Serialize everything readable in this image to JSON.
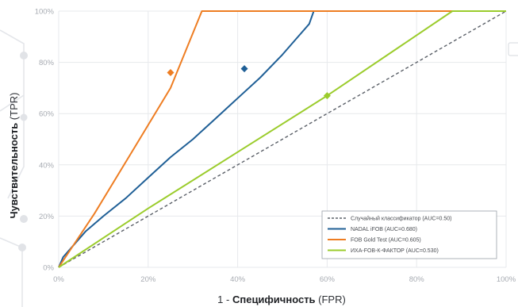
{
  "chart_data": {
    "type": "line",
    "xlabel": {
      "prefix": "1 - ",
      "strong": "Специфичность",
      "suffix": " (FPR)"
    },
    "ylabel": {
      "strong": "Чувствительность",
      "suffix": " (TPR)"
    },
    "xlim": [
      0,
      100
    ],
    "ylim": [
      0,
      100
    ],
    "x_ticks": [
      {
        "value": 0,
        "label": "0%"
      },
      {
        "value": 20,
        "label": "20%"
      },
      {
        "value": 40,
        "label": "40%"
      },
      {
        "value": 60,
        "label": "60%"
      },
      {
        "value": 80,
        "label": "80%"
      },
      {
        "value": 100,
        "label": "100%"
      }
    ],
    "y_ticks": [
      {
        "value": 0,
        "label": "0%"
      },
      {
        "value": 20,
        "label": "20%"
      },
      {
        "value": 40,
        "label": "40%"
      },
      {
        "value": 60,
        "label": "60%"
      },
      {
        "value": 80,
        "label": "80%"
      },
      {
        "value": 100,
        "label": "100%"
      }
    ],
    "grid": true,
    "legend_position": "bottom-right",
    "series": [
      {
        "name": "Случайный классификатор (AUC=0.50)",
        "color": "#5b6068",
        "dashed": true,
        "points": [
          [
            0,
            0
          ],
          [
            100,
            100
          ]
        ],
        "marker": null
      },
      {
        "name": "NADAL iFOB (AUC=0.680)",
        "color": "#1f5f96",
        "dashed": false,
        "points": [
          [
            0,
            0
          ],
          [
            1,
            4
          ],
          [
            3,
            8
          ],
          [
            6,
            14
          ],
          [
            10,
            20
          ],
          [
            15,
            27
          ],
          [
            20,
            35
          ],
          [
            25,
            43
          ],
          [
            30,
            50
          ],
          [
            35,
            58
          ],
          [
            40,
            66
          ],
          [
            45,
            74
          ],
          [
            50,
            83
          ],
          [
            53,
            89
          ],
          [
            56,
            95
          ],
          [
            57,
            100
          ],
          [
            100,
            100
          ]
        ],
        "marker": [
          41.5,
          77.5
        ]
      },
      {
        "name": "FOB Gold Test (AUC=0.605)",
        "color": "#ee7d22",
        "dashed": false,
        "points": [
          [
            0,
            0
          ],
          [
            8,
            21
          ],
          [
            16,
            44
          ],
          [
            25,
            70
          ],
          [
            32,
            100
          ],
          [
            100,
            100
          ]
        ],
        "marker": [
          25,
          76
        ]
      },
      {
        "name": "ИХА-FOB-К-ФАКТОР (AUC=0.530)",
        "color": "#9bcc2c",
        "dashed": false,
        "points": [
          [
            0,
            0
          ],
          [
            20,
            23
          ],
          [
            40,
            45
          ],
          [
            60,
            67
          ],
          [
            88,
            100
          ],
          [
            100,
            100
          ]
        ],
        "marker": [
          60,
          67
        ]
      }
    ]
  }
}
